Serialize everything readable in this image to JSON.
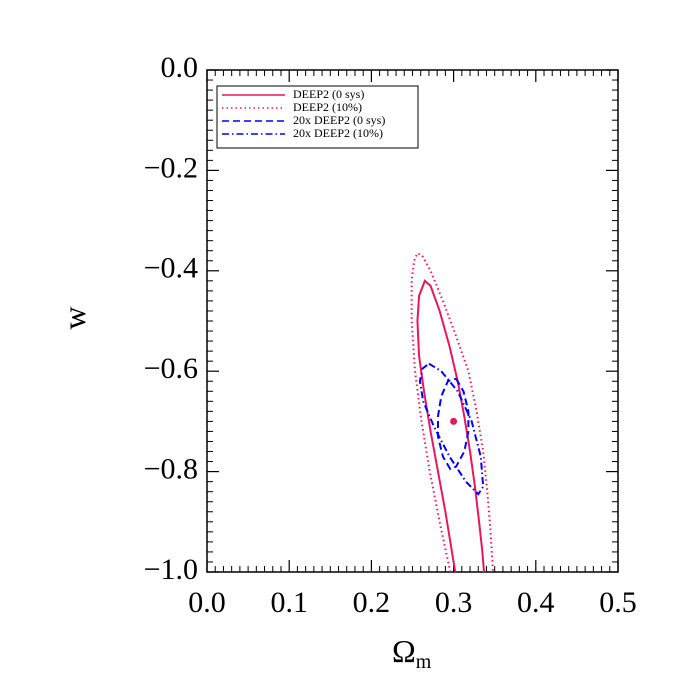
{
  "chart_data": {
    "type": "contour",
    "xlabel": {
      "text": "Ω",
      "subscript": "m"
    },
    "ylabel": "w",
    "xlim": [
      0,
      0.5
    ],
    "ylim": [
      -1.0,
      0.0
    ],
    "xticks": [
      {
        "value": 0,
        "label": "0.0"
      },
      0.1,
      0.2,
      0.3,
      0.4,
      0.5
    ],
    "yticks": [
      {
        "value": 0,
        "label": "0.0"
      },
      {
        "value": -0.2,
        "label": "−0.2"
      },
      {
        "value": -0.4,
        "label": "−0.4"
      },
      {
        "value": -0.6,
        "label": "−0.6"
      },
      {
        "value": -0.8,
        "label": "−0.8"
      },
      {
        "value": -1.0,
        "label": "−1.0"
      }
    ],
    "legend": "top-left",
    "series": [
      {
        "name": "DEEP2 (0 sys)",
        "color": "#e8175d",
        "dash": "solid",
        "x": [
          0.302,
          0.297,
          0.29,
          0.281,
          0.272,
          0.264,
          0.258,
          0.256,
          0.258,
          0.265,
          0.272,
          0.283,
          0.295,
          0.305,
          0.313,
          0.32,
          0.326,
          0.331,
          0.335,
          0.337
        ],
        "y": [
          -1.0,
          -0.95,
          -0.88,
          -0.8,
          -0.72,
          -0.64,
          -0.57,
          -0.5,
          -0.45,
          -0.42,
          -0.43,
          -0.48,
          -0.55,
          -0.62,
          -0.69,
          -0.76,
          -0.83,
          -0.9,
          -0.96,
          -1.0
        ]
      },
      {
        "name": "DEEP2 (10%)",
        "color": "#e8175d",
        "dash": "dotted",
        "x": [
          0.296,
          0.283,
          0.271,
          0.261,
          0.253,
          0.249,
          0.249,
          0.252,
          0.256,
          0.262,
          0.272,
          0.287,
          0.303,
          0.318,
          0.328,
          0.336,
          0.341,
          0.345,
          0.348
        ],
        "y": [
          -1.0,
          -0.9,
          -0.8,
          -0.7,
          -0.6,
          -0.5,
          -0.42,
          -0.38,
          -0.365,
          -0.37,
          -0.4,
          -0.46,
          -0.53,
          -0.6,
          -0.68,
          -0.76,
          -0.84,
          -0.92,
          -1.0
        ]
      },
      {
        "name": "20x DEEP2 (0 sys)",
        "color": "#0000ff",
        "dash": "dashed",
        "x": [
          0.303,
          0.312,
          0.318,
          0.318,
          0.313,
          0.303,
          0.296,
          0.287,
          0.281,
          0.281,
          0.285,
          0.293,
          0.303
        ],
        "y": [
          -0.615,
          -0.64,
          -0.68,
          -0.72,
          -0.76,
          -0.79,
          -0.795,
          -0.77,
          -0.73,
          -0.69,
          -0.65,
          -0.62,
          -0.615
        ]
      },
      {
        "name": "20x DEEP2 (10%)",
        "color": "#0000ff",
        "dash": "dashdot",
        "x": [
          0.27,
          0.285,
          0.305,
          0.322,
          0.333,
          0.336,
          0.33,
          0.315,
          0.295,
          0.276,
          0.263,
          0.259,
          0.262,
          0.27
        ],
        "y": [
          -0.585,
          -0.6,
          -0.64,
          -0.7,
          -0.77,
          -0.83,
          -0.845,
          -0.82,
          -0.77,
          -0.71,
          -0.66,
          -0.62,
          -0.595,
          -0.585
        ]
      }
    ],
    "point": {
      "x": 0.3,
      "y": -0.7,
      "color": "#e8175d"
    }
  }
}
